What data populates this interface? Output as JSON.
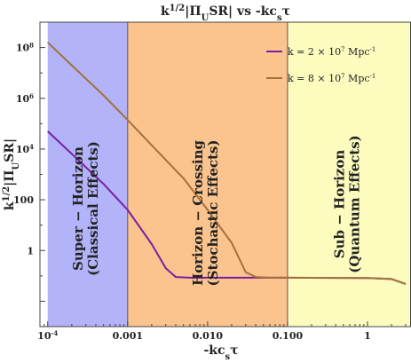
{
  "chart_data": {
    "type": "line",
    "title": "k^{1/2}|Π_USR| vs -kc_sτ",
    "xlabel": "-kc_sτ",
    "ylabel": "k^{1/2}|Π_USR|",
    "x_scale": "log",
    "y_scale": "log",
    "xlim": [
      8e-05,
      3.5
    ],
    "ylim": [
      0.001,
      1000000000
    ],
    "x_ticks": [
      {
        "value": 0.0001,
        "label": "10^{-4}"
      },
      {
        "value": 0.001,
        "label": "0.001"
      },
      {
        "value": 0.01,
        "label": "0.010"
      },
      {
        "value": 0.1,
        "label": "0.100"
      },
      {
        "value": 1,
        "label": "1"
      }
    ],
    "y_ticks": [
      {
        "value": 1,
        "label": "1"
      },
      {
        "value": 100,
        "label": "100"
      },
      {
        "value": 10000,
        "label": "10^4"
      },
      {
        "value": 1000000,
        "label": "10^6"
      },
      {
        "value": 100000000,
        "label": "10^8"
      }
    ],
    "regions": [
      {
        "x_from": 0.0001,
        "x_to": 0.001,
        "color": "#b2b3f8",
        "label_line1": "Super − Horizon",
        "label_line2": "(Classical Effects)"
      },
      {
        "x_from": 0.001,
        "x_to": 0.1,
        "color": "#fbc48e",
        "label_line1": "Horizon − Crossing",
        "label_line2": "(Stochastic Effects)"
      },
      {
        "x_from": 0.1,
        "x_to": 3.5,
        "color": "#fdfcbf",
        "label_line1": "Sub − Horizon",
        "label_line2": "(Quantum Effects)"
      }
    ],
    "legend_position": "top-right",
    "series": [
      {
        "name": "k = 2 × 10^7 Mpc^{-1}",
        "color": "#7a1ea1",
        "points": [
          [
            0.0001,
            50000
          ],
          [
            0.0002,
            6500
          ],
          [
            0.0005,
            420
          ],
          [
            0.001,
            40
          ],
          [
            0.002,
            1.8
          ],
          [
            0.003,
            0.2
          ],
          [
            0.004,
            0.09
          ],
          [
            0.006,
            0.085
          ],
          [
            0.01,
            0.085
          ],
          [
            0.1,
            0.085
          ],
          [
            1,
            0.082
          ],
          [
            2,
            0.075
          ],
          [
            3,
            0.048
          ]
        ]
      },
      {
        "name": "k = 8 × 10^7 Mpc^{-1}",
        "color": "#a4713c",
        "points": [
          [
            0.0001,
            160000000
          ],
          [
            0.0002,
            20000000
          ],
          [
            0.0005,
            1300000
          ],
          [
            0.001,
            140000
          ],
          [
            0.002,
            14000
          ],
          [
            0.005,
            700
          ],
          [
            0.01,
            40
          ],
          [
            0.02,
            2
          ],
          [
            0.03,
            0.14
          ],
          [
            0.04,
            0.09
          ],
          [
            0.06,
            0.085
          ],
          [
            0.1,
            0.085
          ],
          [
            1,
            0.082
          ],
          [
            2,
            0.075
          ],
          [
            3,
            0.048
          ]
        ]
      }
    ]
  }
}
